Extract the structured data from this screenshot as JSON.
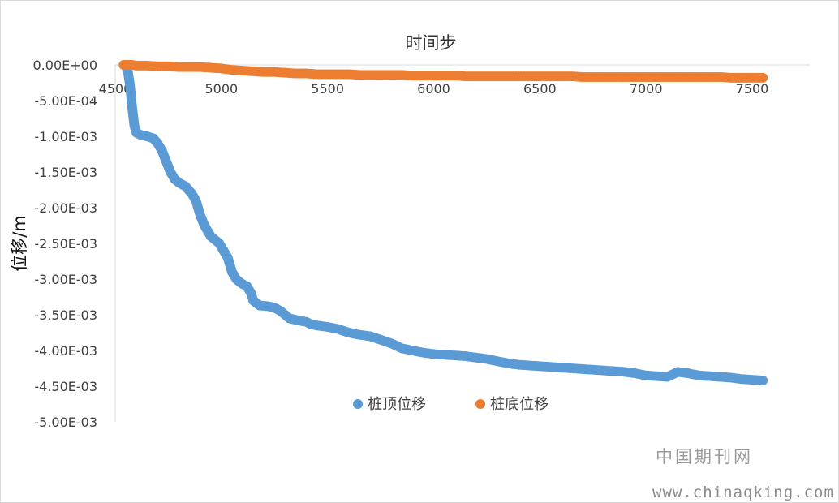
{
  "chart_data": {
    "type": "scatter",
    "title": "时间步",
    "xlabel": "",
    "ylabel": "位移/m",
    "xlim": [
      4500,
      7500
    ],
    "x_ticks": [
      4500,
      5000,
      5500,
      6000,
      6500,
      7000,
      7500
    ],
    "x_tick_labels": [
      "4500",
      "5000",
      "5500",
      "6000",
      "6500",
      "7000",
      "7500"
    ],
    "ylim": [
      -0.005,
      0
    ],
    "y_ticks": [
      0,
      -0.0005,
      -0.001,
      -0.0015,
      -0.002,
      -0.0025,
      -0.003,
      -0.0035,
      -0.004,
      -0.0045,
      -0.005
    ],
    "y_tick_labels": [
      "0.00E+00",
      "-5.00E-04",
      "-1.00E-03",
      "-1.50E-03",
      "-2.00E-03",
      "-2.50E-03",
      "-3.00E-03",
      "-3.50E-03",
      "-4.00E-03",
      "-4.50E-03",
      "-5.00E-03"
    ],
    "grid": false,
    "legend_position": "bottom-center",
    "series": [
      {
        "name": "桩顶位移",
        "color": "#5b9bd5",
        "x": [
          4540,
          4552,
          4560,
          4565,
          4570,
          4575,
          4580,
          4585,
          4590,
          4600,
          4620,
          4650,
          4680,
          4700,
          4720,
          4740,
          4760,
          4780,
          4800,
          4830,
          4860,
          4880,
          4900,
          4920,
          4930,
          4950,
          4970,
          4990,
          5010,
          5030,
          5050,
          5070,
          5090,
          5100,
          5120,
          5140,
          5150,
          5180,
          5220,
          5250,
          5280,
          5300,
          5320,
          5350,
          5400,
          5420,
          5450,
          5500,
          5550,
          5600,
          5650,
          5700,
          5750,
          5800,
          5850,
          5900,
          5950,
          6000,
          6050,
          6100,
          6150,
          6200,
          6250,
          6300,
          6350,
          6400,
          6450,
          6500,
          6550,
          6600,
          6650,
          6700,
          6750,
          6800,
          6850,
          6900,
          6950,
          7000,
          7050,
          7100,
          7150,
          7200,
          7250,
          7300,
          7350,
          7400,
          7450,
          7500,
          7550
        ],
        "y": [
          0,
          -3e-05,
          -0.0001,
          -0.0002,
          -0.0003,
          -0.00045,
          -0.0006,
          -0.00072,
          -0.00085,
          -0.00095,
          -0.00098,
          -0.001,
          -0.00103,
          -0.0011,
          -0.0012,
          -0.00135,
          -0.0015,
          -0.0016,
          -0.00165,
          -0.0017,
          -0.0018,
          -0.0019,
          -0.0021,
          -0.00225,
          -0.0023,
          -0.0024,
          -0.00245,
          -0.0025,
          -0.0026,
          -0.0027,
          -0.0029,
          -0.003,
          -0.00305,
          -0.00307,
          -0.0031,
          -0.0032,
          -0.0033,
          -0.00337,
          -0.00338,
          -0.0034,
          -0.00345,
          -0.0035,
          -0.00355,
          -0.00357,
          -0.0036,
          -0.00363,
          -0.00365,
          -0.00367,
          -0.0037,
          -0.00375,
          -0.00378,
          -0.0038,
          -0.00385,
          -0.0039,
          -0.00397,
          -0.004,
          -0.00403,
          -0.00405,
          -0.00406,
          -0.00407,
          -0.00408,
          -0.0041,
          -0.00412,
          -0.00415,
          -0.00418,
          -0.0042,
          -0.00421,
          -0.00422,
          -0.00423,
          -0.00424,
          -0.00425,
          -0.00426,
          -0.00427,
          -0.00428,
          -0.00429,
          -0.0043,
          -0.00432,
          -0.00435,
          -0.00436,
          -0.00437,
          -0.0043,
          -0.00432,
          -0.00435,
          -0.00436,
          -0.00437,
          -0.00438,
          -0.0044,
          -0.00441,
          -0.00442
        ]
      },
      {
        "name": "桩底位移",
        "color": "#ed7d31",
        "x": [
          4540,
          4560,
          4580,
          4600,
          4650,
          4700,
          4750,
          4800,
          4850,
          4900,
          4950,
          5000,
          5050,
          5100,
          5150,
          5200,
          5250,
          5300,
          5350,
          5400,
          5450,
          5500,
          5550,
          5600,
          5650,
          5700,
          5750,
          5800,
          5850,
          5900,
          5950,
          6000,
          6050,
          6100,
          6150,
          6200,
          6250,
          6300,
          6350,
          6400,
          6450,
          6500,
          6550,
          6600,
          6650,
          6700,
          6750,
          6800,
          6850,
          6900,
          6950,
          7000,
          7050,
          7100,
          7150,
          7200,
          7250,
          7300,
          7350,
          7400,
          7450,
          7500,
          7550
        ],
        "y": [
          0,
          0,
          0,
          -1e-05,
          -1e-05,
          -2e-05,
          -2e-05,
          -3e-05,
          -3e-05,
          -3e-05,
          -4e-05,
          -5e-05,
          -7e-05,
          -8e-05,
          -9e-05,
          -0.0001,
          -0.0001,
          -0.00011,
          -0.00012,
          -0.00012,
          -0.00013,
          -0.00013,
          -0.00013,
          -0.00013,
          -0.00014,
          -0.00014,
          -0.00014,
          -0.00014,
          -0.00014,
          -0.00015,
          -0.00015,
          -0.00015,
          -0.00015,
          -0.00015,
          -0.00016,
          -0.00016,
          -0.00016,
          -0.00016,
          -0.00016,
          -0.00016,
          -0.00016,
          -0.00016,
          -0.00016,
          -0.00016,
          -0.00016,
          -0.00017,
          -0.00017,
          -0.00017,
          -0.00017,
          -0.00017,
          -0.00017,
          -0.00017,
          -0.00017,
          -0.00017,
          -0.00017,
          -0.00017,
          -0.00017,
          -0.00017,
          -0.00017,
          -0.00018,
          -0.00018,
          -0.00018,
          -0.00018
        ]
      }
    ]
  },
  "watermark": {
    "site_name": "中国期刊网",
    "url": "www.chinaqking.com"
  }
}
